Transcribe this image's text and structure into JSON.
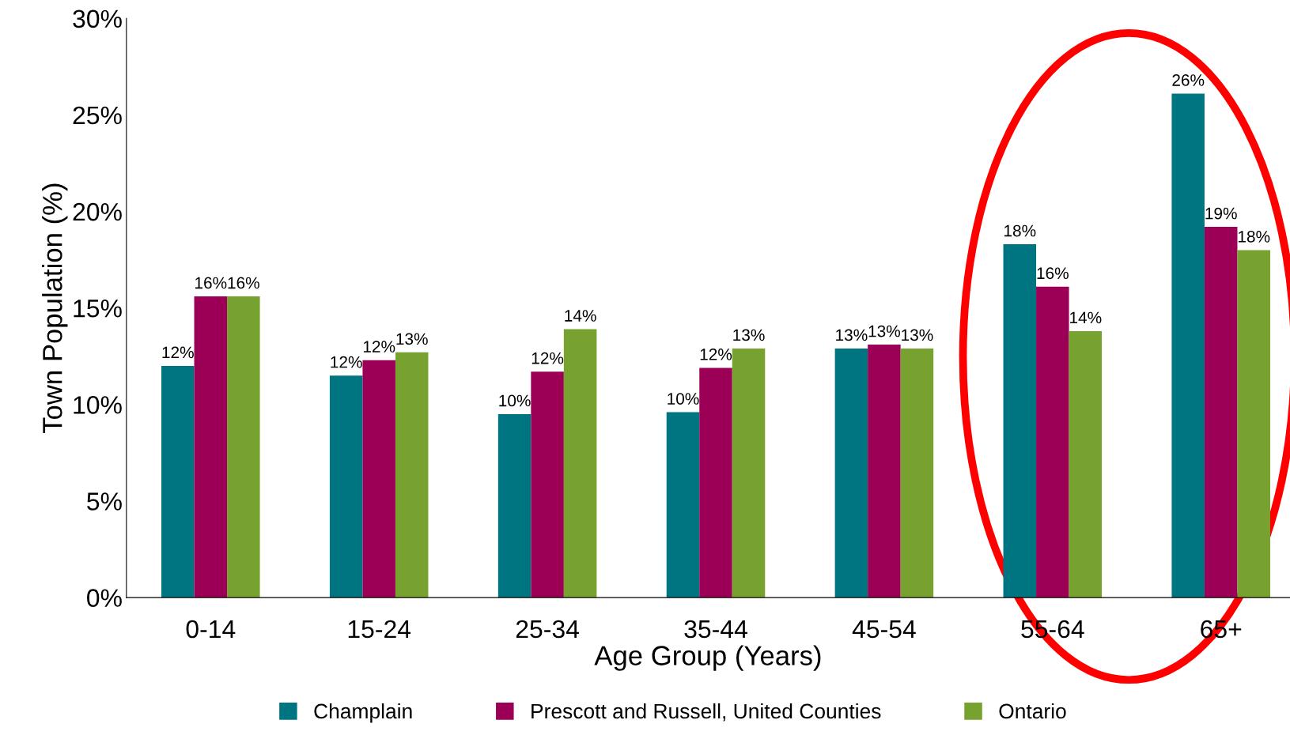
{
  "chart_data": {
    "type": "bar",
    "xlabel": "Age Group (Years)",
    "ylabel": "Town Population (%)",
    "categories": [
      "0-14",
      "15-24",
      "25-34",
      "35-44",
      "45-54",
      "55-64",
      "65+"
    ],
    "series": [
      {
        "name": "Champlain",
        "color": "#007582",
        "values": [
          12.0,
          11.5,
          9.5,
          9.6,
          12.9,
          18.3,
          26.1
        ],
        "value_labels": [
          "12%",
          "12%",
          "10%",
          "10%",
          "13%",
          "18%",
          "26%"
        ]
      },
      {
        "name": "Prescott and Russell, United Counties",
        "color": "#9b0056",
        "values": [
          15.6,
          12.3,
          11.7,
          11.9,
          13.1,
          16.1,
          19.2
        ],
        "value_labels": [
          "16%",
          "12%",
          "12%",
          "12%",
          "13%",
          "16%",
          "19%"
        ]
      },
      {
        "name": "Ontario",
        "color": "#77a22f",
        "values": [
          15.6,
          12.7,
          13.9,
          12.9,
          12.9,
          13.8,
          18.0
        ],
        "value_labels": [
          "16%",
          "13%",
          "14%",
          "13%",
          "13%",
          "14%",
          "18%"
        ]
      }
    ],
    "ylim": [
      0,
      30
    ],
    "yticks": [
      {
        "value": 0,
        "label": "0%"
      },
      {
        "value": 5,
        "label": "5%"
      },
      {
        "value": 10,
        "label": "10%"
      },
      {
        "value": 15,
        "label": "15%"
      },
      {
        "value": 20,
        "label": "20%"
      },
      {
        "value": 25,
        "label": "25%"
      },
      {
        "value": 30,
        "label": "30%"
      }
    ],
    "grid": false,
    "legend": "bottom"
  }
}
